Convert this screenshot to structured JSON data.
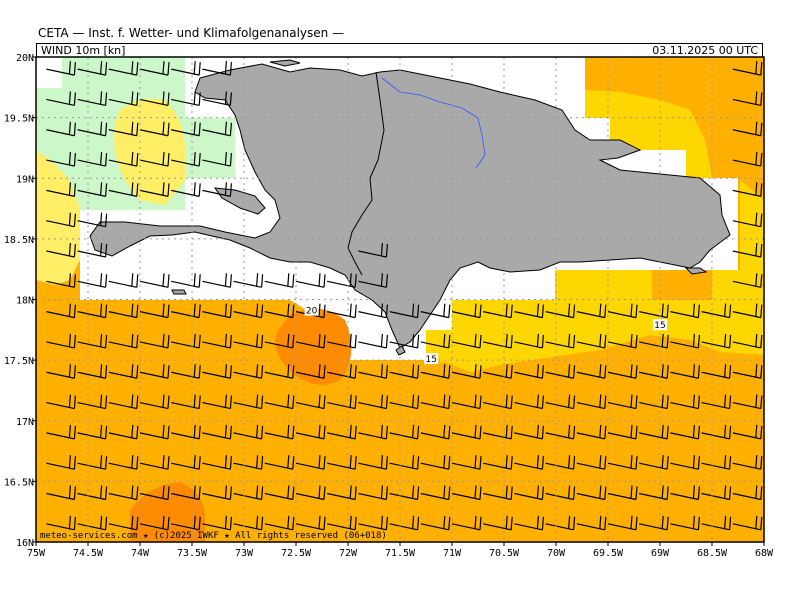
{
  "header": {
    "title": "CETA — Inst. f. Wetter- und Klimafolgenanalysen —",
    "field": "WIND 10m [kn]",
    "valid_time": "03.11.2025 00 UTC"
  },
  "axes": {
    "lon_ticks": [
      "75W",
      "74.5W",
      "74W",
      "73.5W",
      "73W",
      "72.5W",
      "72W",
      "71.5W",
      "71W",
      "70.5W",
      "70W",
      "69.5W",
      "69W",
      "68.5W",
      "68W"
    ],
    "lat_ticks": [
      "20N",
      "19.5N",
      "19N",
      "18.5N",
      "18N",
      "17.5N",
      "17N",
      "16.5N",
      "16N"
    ],
    "lon_range": [
      -75,
      -68
    ],
    "lat_range": [
      16,
      20
    ],
    "grid": true
  },
  "contour_labels": [
    {
      "text": "20",
      "lon": -72.35,
      "lat": 17.9
    },
    {
      "text": "15",
      "lon": -71.2,
      "lat": 17.5
    },
    {
      "text": "15",
      "lon": -69.0,
      "lat": 17.78
    }
  ],
  "wind": {
    "typical_direction": "east",
    "typical_speed_kn": 20,
    "barb_spacing_deg": 0.25
  },
  "colors": {
    "land": "#a9a9a9",
    "coast": "#000000",
    "kn_10_15": "#ccf7c8",
    "kn_15_20_light": "#ffee66",
    "kn_15_20": "#ffd700",
    "kn_20_25": "#ffb000",
    "kn_25_30": "#ff8c00",
    "river": "#3355ff"
  },
  "footer": {
    "credit": "meteo-services.com ★ (c)2025 IWKF ★ All rights reserved (06+018)"
  }
}
